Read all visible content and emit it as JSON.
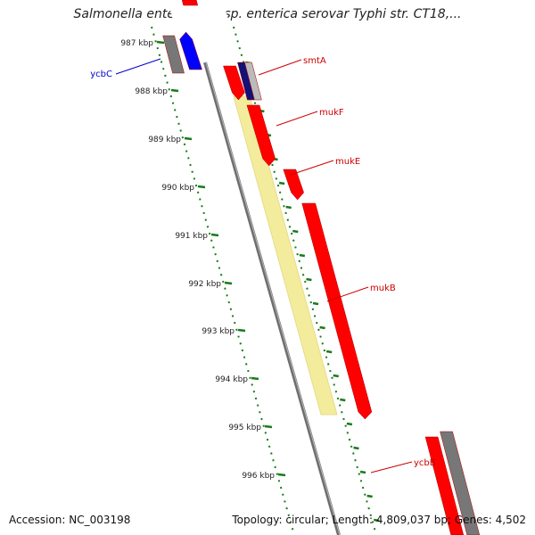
{
  "title": "Salmonella enterica subsp. enterica serovar Typhi str. CT18,...",
  "accession_text": "Accession: NC_003198",
  "topology_text": "Topology: circular; Length: 4,809,037 bp; Genes: 4,502",
  "colors": {
    "forward_gene": "#ff0000",
    "reverse_gene": "#0000ff",
    "forward_label": "#cc0000",
    "reverse_label": "#0000cc",
    "tick": "#1a7a1a",
    "highlight": "#f3ec9c",
    "backbone": "#808080"
  },
  "ruler": [
    {
      "label": "987 kbp",
      "kbp": 987
    },
    {
      "label": "988 kbp",
      "kbp": 988
    },
    {
      "label": "989 kbp",
      "kbp": 989
    },
    {
      "label": "990 kbp",
      "kbp": 990
    },
    {
      "label": "991 kbp",
      "kbp": 991
    },
    {
      "label": "992 kbp",
      "kbp": 992
    },
    {
      "label": "993 kbp",
      "kbp": 993
    },
    {
      "label": "994 kbp",
      "kbp": 994
    },
    {
      "label": "995 kbp",
      "kbp": 995
    },
    {
      "label": "996 kbp",
      "kbp": 996
    }
  ],
  "genes": [
    {
      "name": "ycbC",
      "strand": "reverse",
      "label_side": "left"
    },
    {
      "name": "smtA",
      "strand": "forward",
      "label_side": "right"
    },
    {
      "name": "mukF",
      "strand": "forward",
      "label_side": "right"
    },
    {
      "name": "mukE",
      "strand": "forward",
      "label_side": "right"
    },
    {
      "name": "mukB",
      "strand": "forward",
      "label_side": "right"
    },
    {
      "name": "ycbB",
      "strand": "forward",
      "label_side": "right"
    }
  ]
}
